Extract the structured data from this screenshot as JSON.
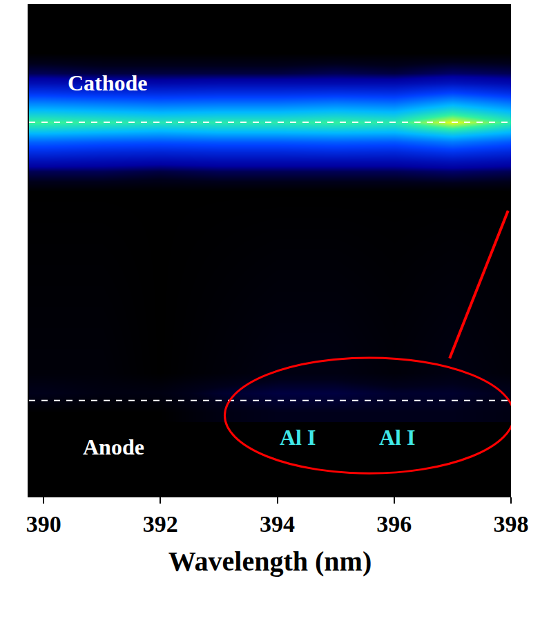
{
  "chart_data": {
    "type": "heatmap",
    "x_title": "Wavelength (nm)",
    "x": [
      390,
      391,
      392,
      393,
      394,
      395,
      396,
      397,
      398
    ],
    "y": [
      17,
      21,
      25,
      62,
      66,
      68,
      70,
      72,
      74,
      76,
      78,
      80,
      82,
      84,
      86,
      90
    ],
    "z": [
      [
        0,
        0,
        0,
        2,
        3,
        3,
        3,
        3,
        2
      ],
      [
        3,
        2,
        2,
        4,
        5,
        5,
        4,
        4,
        3
      ],
      [
        1,
        1,
        0,
        1,
        2,
        2,
        1,
        2,
        1
      ],
      [
        0,
        0,
        0,
        0,
        0,
        0,
        0,
        0,
        0
      ],
      [
        6,
        6,
        5,
        6,
        6,
        6,
        6,
        7,
        6
      ],
      [
        14,
        13,
        12,
        13,
        13,
        13,
        13,
        15,
        13
      ],
      [
        24,
        22,
        21,
        22,
        22,
        23,
        22,
        26,
        22
      ],
      [
        36,
        34,
        33,
        34,
        34,
        35,
        34,
        40,
        34
      ],
      [
        52,
        50,
        48,
        50,
        50,
        51,
        50,
        58,
        50
      ],
      [
        66,
        64,
        62,
        63,
        63,
        65,
        63,
        78,
        64
      ],
      [
        54,
        52,
        50,
        51,
        51,
        53,
        51,
        62,
        52
      ],
      [
        40,
        38,
        36,
        37,
        37,
        39,
        37,
        46,
        38
      ],
      [
        26,
        24,
        23,
        24,
        24,
        25,
        24,
        30,
        24
      ],
      [
        14,
        13,
        12,
        13,
        13,
        13,
        13,
        16,
        13
      ],
      [
        6,
        5,
        5,
        5,
        5,
        6,
        5,
        7,
        6
      ],
      [
        0,
        0,
        0,
        0,
        0,
        0,
        0,
        0,
        0
      ]
    ],
    "z_range": [
      0,
      100
    ],
    "xlim": [
      389.75,
      398.0
    ],
    "xticks": [
      390,
      392,
      394,
      396,
      398
    ],
    "ylim": [
      0,
      100
    ],
    "tick_labels": "x",
    "grid": false,
    "labels": {
      "cathode": "Cathode",
      "anode": "Anode",
      "lines": [
        "Al I",
        "Al I"
      ]
    }
  }
}
